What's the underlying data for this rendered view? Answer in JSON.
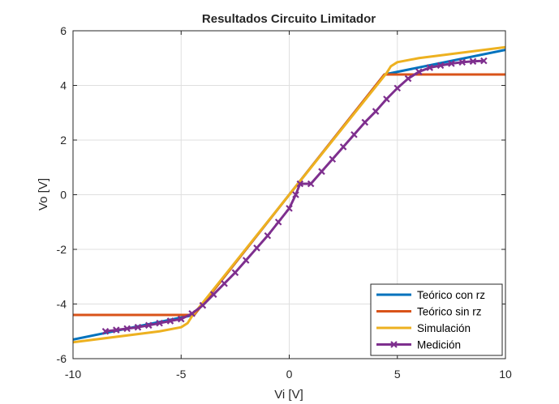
{
  "chart_data": {
    "type": "line",
    "title": "Resultados Circuito Limitador",
    "xlabel": "Vi [V]",
    "ylabel": "Vo [V]",
    "xlim": [
      -10,
      10
    ],
    "ylim": [
      -6,
      6
    ],
    "xticks": [
      -10,
      -5,
      0,
      5,
      10
    ],
    "yticks": [
      -6,
      -4,
      -2,
      0,
      2,
      4,
      6
    ],
    "xtick_labels": [
      "-10",
      "-5",
      "0",
      "5",
      "10"
    ],
    "ytick_labels": [
      "-6",
      "-4",
      "-2",
      "0",
      "2",
      "4",
      "6"
    ],
    "grid": true,
    "legend": {
      "placement": "bottom-right"
    },
    "series": [
      {
        "name": "Teórico con rz",
        "color": "#0072BD",
        "marker": "none",
        "x": [
          -10,
          -4.4,
          4.4,
          10
        ],
        "y": [
          -5.3,
          -4.4,
          4.4,
          5.3
        ]
      },
      {
        "name": "Teórico sin rz",
        "color": "#D95319",
        "marker": "none",
        "x": [
          -10,
          -4.4,
          4.4,
          10
        ],
        "y": [
          -4.4,
          -4.4,
          4.4,
          4.4
        ]
      },
      {
        "name": "Simulación",
        "color": "#EDB120",
        "marker": "none",
        "x": [
          -10,
          -6,
          -5,
          -4.7,
          -4.5,
          4.5,
          4.7,
          5,
          6,
          10
        ],
        "y": [
          -5.4,
          -5.0,
          -4.85,
          -4.7,
          -4.45,
          4.45,
          4.7,
          4.85,
          5.0,
          5.4
        ]
      },
      {
        "name": "Medición",
        "color": "#7E2F8E",
        "marker": "x",
        "x": [
          -8.5,
          -8.0,
          -7.5,
          -7.0,
          -6.5,
          -6.0,
          -5.5,
          -5.0,
          -4.5,
          -4.0,
          -3.5,
          -3.0,
          -2.5,
          -2.0,
          -1.5,
          -1.0,
          -0.5,
          0.0,
          0.3,
          0.5,
          1.0,
          1.5,
          2.0,
          2.5,
          3.0,
          3.5,
          4.0,
          4.5,
          5.0,
          5.5,
          6.0,
          6.5,
          7.0,
          7.5,
          8.0,
          8.5,
          9.0
        ],
        "y": [
          -5.0,
          -4.95,
          -4.9,
          -4.85,
          -4.78,
          -4.7,
          -4.62,
          -4.55,
          -4.35,
          -4.05,
          -3.65,
          -3.25,
          -2.85,
          -2.4,
          -1.95,
          -1.5,
          -1.0,
          -0.5,
          0.0,
          0.4,
          0.4,
          0.85,
          1.3,
          1.75,
          2.2,
          2.65,
          3.05,
          3.5,
          3.9,
          4.25,
          4.5,
          4.65,
          4.73,
          4.8,
          4.85,
          4.88,
          4.9
        ]
      }
    ]
  }
}
